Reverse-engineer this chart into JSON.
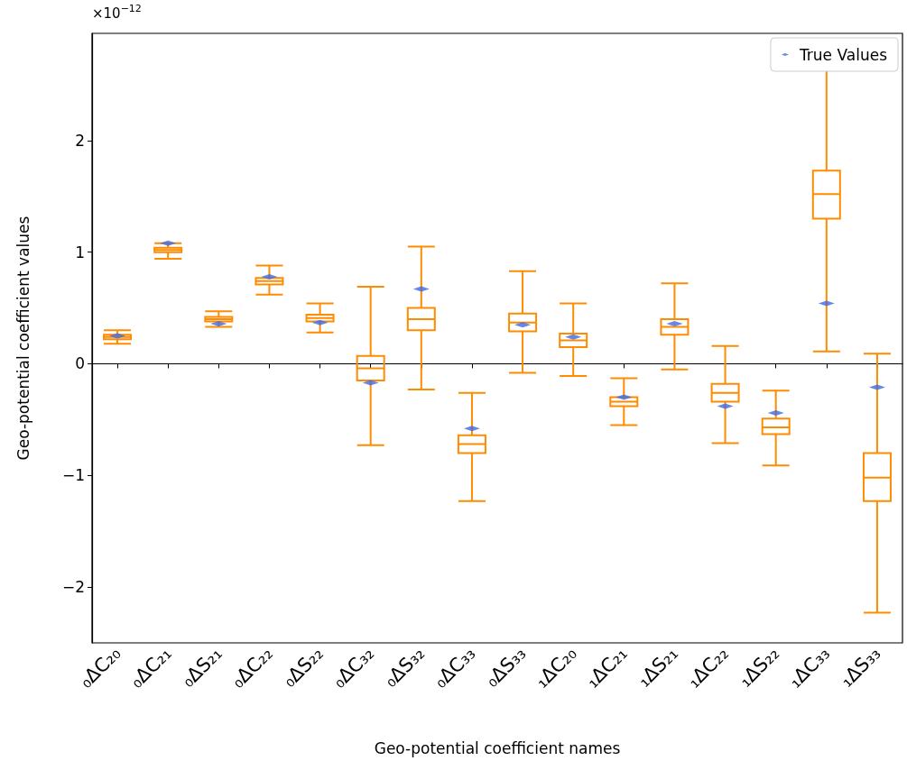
{
  "chart_data": {
    "type": "box",
    "xlabel": "Geo-potential coefficient names",
    "ylabel": "Geo-potential coefficient values",
    "annotations": [
      "×10$^{−12}$"
    ],
    "categories": [
      "₀ΔC₂₀",
      "₀ΔC₂₁",
      "₀ΔS₂₁",
      "₀ΔC₂₂",
      "₀ΔS₂₂",
      "₀ΔC₃₂",
      "₀ΔS₃₂",
      "₀ΔC₃₃",
      "₀ΔS₃₃",
      "₁ΔC₂₀",
      "₁ΔC₂₁",
      "₁ΔS₂₁",
      "₁ΔC₂₂",
      "₁ΔS₂₂",
      "₁ΔC₃₃",
      "₁ΔS₃₃"
    ],
    "ylim": [
      -2.5,
      2.96
    ],
    "yticks": [
      -2,
      -1,
      0,
      1,
      2
    ],
    "legend": "top right",
    "series": [
      {
        "type": "box",
        "color": "#ff8c00",
        "boxes": [
          {
            "low": 0.18,
            "q1": 0.22,
            "median": 0.24,
            "q3": 0.26,
            "high": 0.3
          },
          {
            "low": 0.94,
            "q1": 1.0,
            "median": 1.02,
            "q3": 1.04,
            "high": 1.08
          },
          {
            "low": 0.33,
            "q1": 0.38,
            "median": 0.4,
            "q3": 0.42,
            "high": 0.47
          },
          {
            "low": 0.62,
            "q1": 0.71,
            "median": 0.74,
            "q3": 0.77,
            "high": 0.88
          },
          {
            "low": 0.28,
            "q1": 0.38,
            "median": 0.41,
            "q3": 0.44,
            "high": 0.54
          },
          {
            "low": -0.73,
            "q1": -0.15,
            "median": -0.04,
            "q3": 0.07,
            "high": 0.69
          },
          {
            "low": -0.23,
            "q1": 0.3,
            "median": 0.4,
            "q3": 0.5,
            "high": 1.05
          },
          {
            "low": -1.23,
            "q1": -0.8,
            "median": -0.72,
            "q3": -0.64,
            "high": -0.26
          },
          {
            "low": -0.08,
            "q1": 0.29,
            "median": 0.37,
            "q3": 0.45,
            "high": 0.83
          },
          {
            "low": -0.11,
            "q1": 0.15,
            "median": 0.21,
            "q3": 0.27,
            "high": 0.54
          },
          {
            "low": -0.55,
            "q1": -0.38,
            "median": -0.34,
            "q3": -0.3,
            "high": -0.13
          },
          {
            "low": -0.05,
            "q1": 0.26,
            "median": 0.33,
            "q3": 0.4,
            "high": 0.72
          },
          {
            "low": -0.71,
            "q1": -0.34,
            "median": -0.26,
            "q3": -0.18,
            "high": 0.16
          },
          {
            "low": -0.91,
            "q1": -0.63,
            "median": -0.57,
            "q3": -0.49,
            "high": -0.24
          },
          {
            "low": 0.11,
            "q1": 1.3,
            "median": 1.52,
            "q3": 1.73,
            "high": 2.7
          },
          {
            "low": -2.23,
            "q1": -1.23,
            "median": -1.02,
            "q3": -0.8,
            "high": 0.09
          }
        ]
      },
      {
        "type": "scatter",
        "name": "True Values",
        "color": "#4169e1",
        "x": [
          "₀ΔC₂₀",
          "₀ΔC₂₁",
          "₀ΔS₂₁",
          "₀ΔC₂₂",
          "₀ΔS₂₂",
          "₀ΔC₃₂",
          "₀ΔS₃₂",
          "₀ΔC₃₃",
          "₀ΔS₃₃",
          "₁ΔC₂₀",
          "₁ΔC₂₁",
          "₁ΔS₂₁",
          "₁ΔC₂₂",
          "₁ΔS₂₂",
          "₁ΔC₃₃",
          "₁ΔS₃₃"
        ],
        "values": [
          0.25,
          1.08,
          0.36,
          0.78,
          0.37,
          -0.17,
          0.67,
          -0.58,
          0.35,
          0.24,
          -0.3,
          0.36,
          -0.38,
          -0.44,
          0.54,
          -0.21
        ]
      }
    ]
  }
}
